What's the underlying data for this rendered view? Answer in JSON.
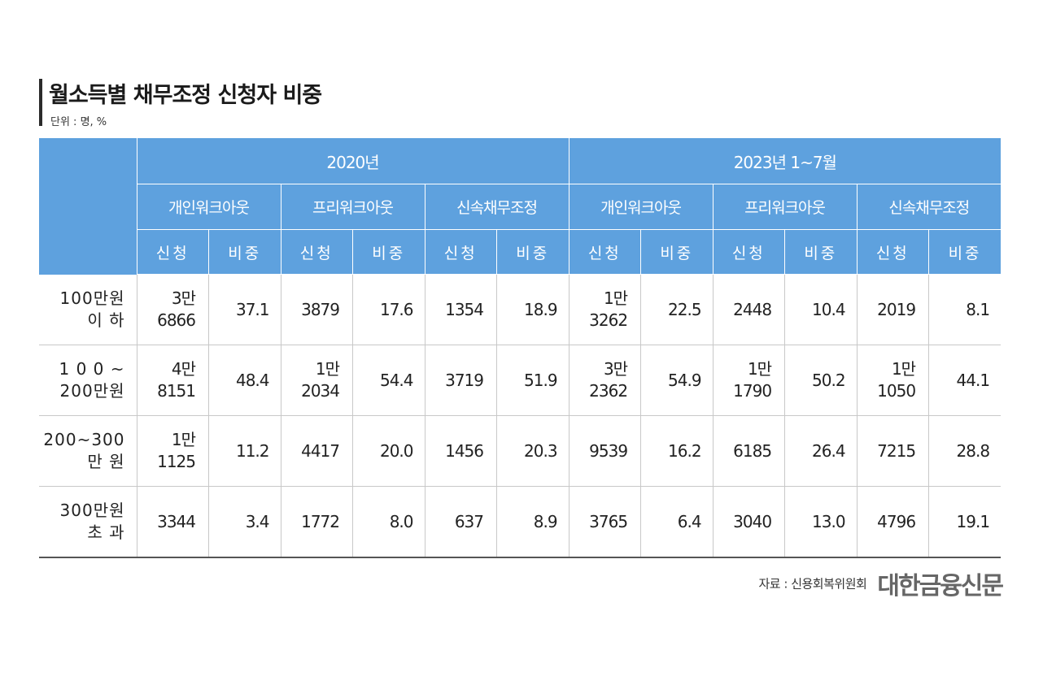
{
  "title": "월소득별 채무조정 신청자 비중",
  "unit": "단위 : 명, %",
  "source": "자료 : 신용회복위원회",
  "brand": "대한금융신문",
  "colors": {
    "header_bg": "#5ea1de",
    "header_text": "#ffffff"
  },
  "chart_data": {
    "type": "table",
    "title": "월소득별 채무조정 신청자 비중",
    "unit": "단위 : 명, %",
    "periods": [
      "2020년",
      "2023년 1~7월"
    ],
    "programs": [
      "개인워크아웃",
      "프리워크아웃",
      "신속채무조정"
    ],
    "measures": [
      "신청",
      "비중"
    ],
    "rows": [
      {
        "label": [
          "100만원",
          "이      하"
        ],
        "cells": [
          [
            "3만",
            "6866"
          ],
          "37.1",
          "3879",
          "17.6",
          "1354",
          "18.9",
          [
            "1만",
            "3262"
          ],
          "22.5",
          "2448",
          "10.4",
          "2019",
          "8.1"
        ]
      },
      {
        "label": [
          "1 0 0 ~",
          "200만원"
        ],
        "cells": [
          [
            "4만",
            "8151"
          ],
          "48.4",
          [
            "1만",
            "2034"
          ],
          "54.4",
          "3719",
          "51.9",
          [
            "3만",
            "2362"
          ],
          "54.9",
          [
            "1만",
            "1790"
          ],
          "50.2",
          [
            "1만",
            "1050"
          ],
          "44.1"
        ]
      },
      {
        "label": [
          "200~300",
          "만      원"
        ],
        "cells": [
          [
            "1만",
            "1125"
          ],
          "11.2",
          "4417",
          "20.0",
          "1456",
          "20.3",
          "9539",
          "16.2",
          "6185",
          "26.4",
          "7215",
          "28.8"
        ]
      },
      {
        "label": [
          "300만원",
          "초      과"
        ],
        "cells": [
          "3344",
          "3.4",
          "1772",
          "8.0",
          "637",
          "8.9",
          "3765",
          "6.4",
          "3040",
          "13.0",
          "4796",
          "19.1"
        ]
      }
    ]
  }
}
